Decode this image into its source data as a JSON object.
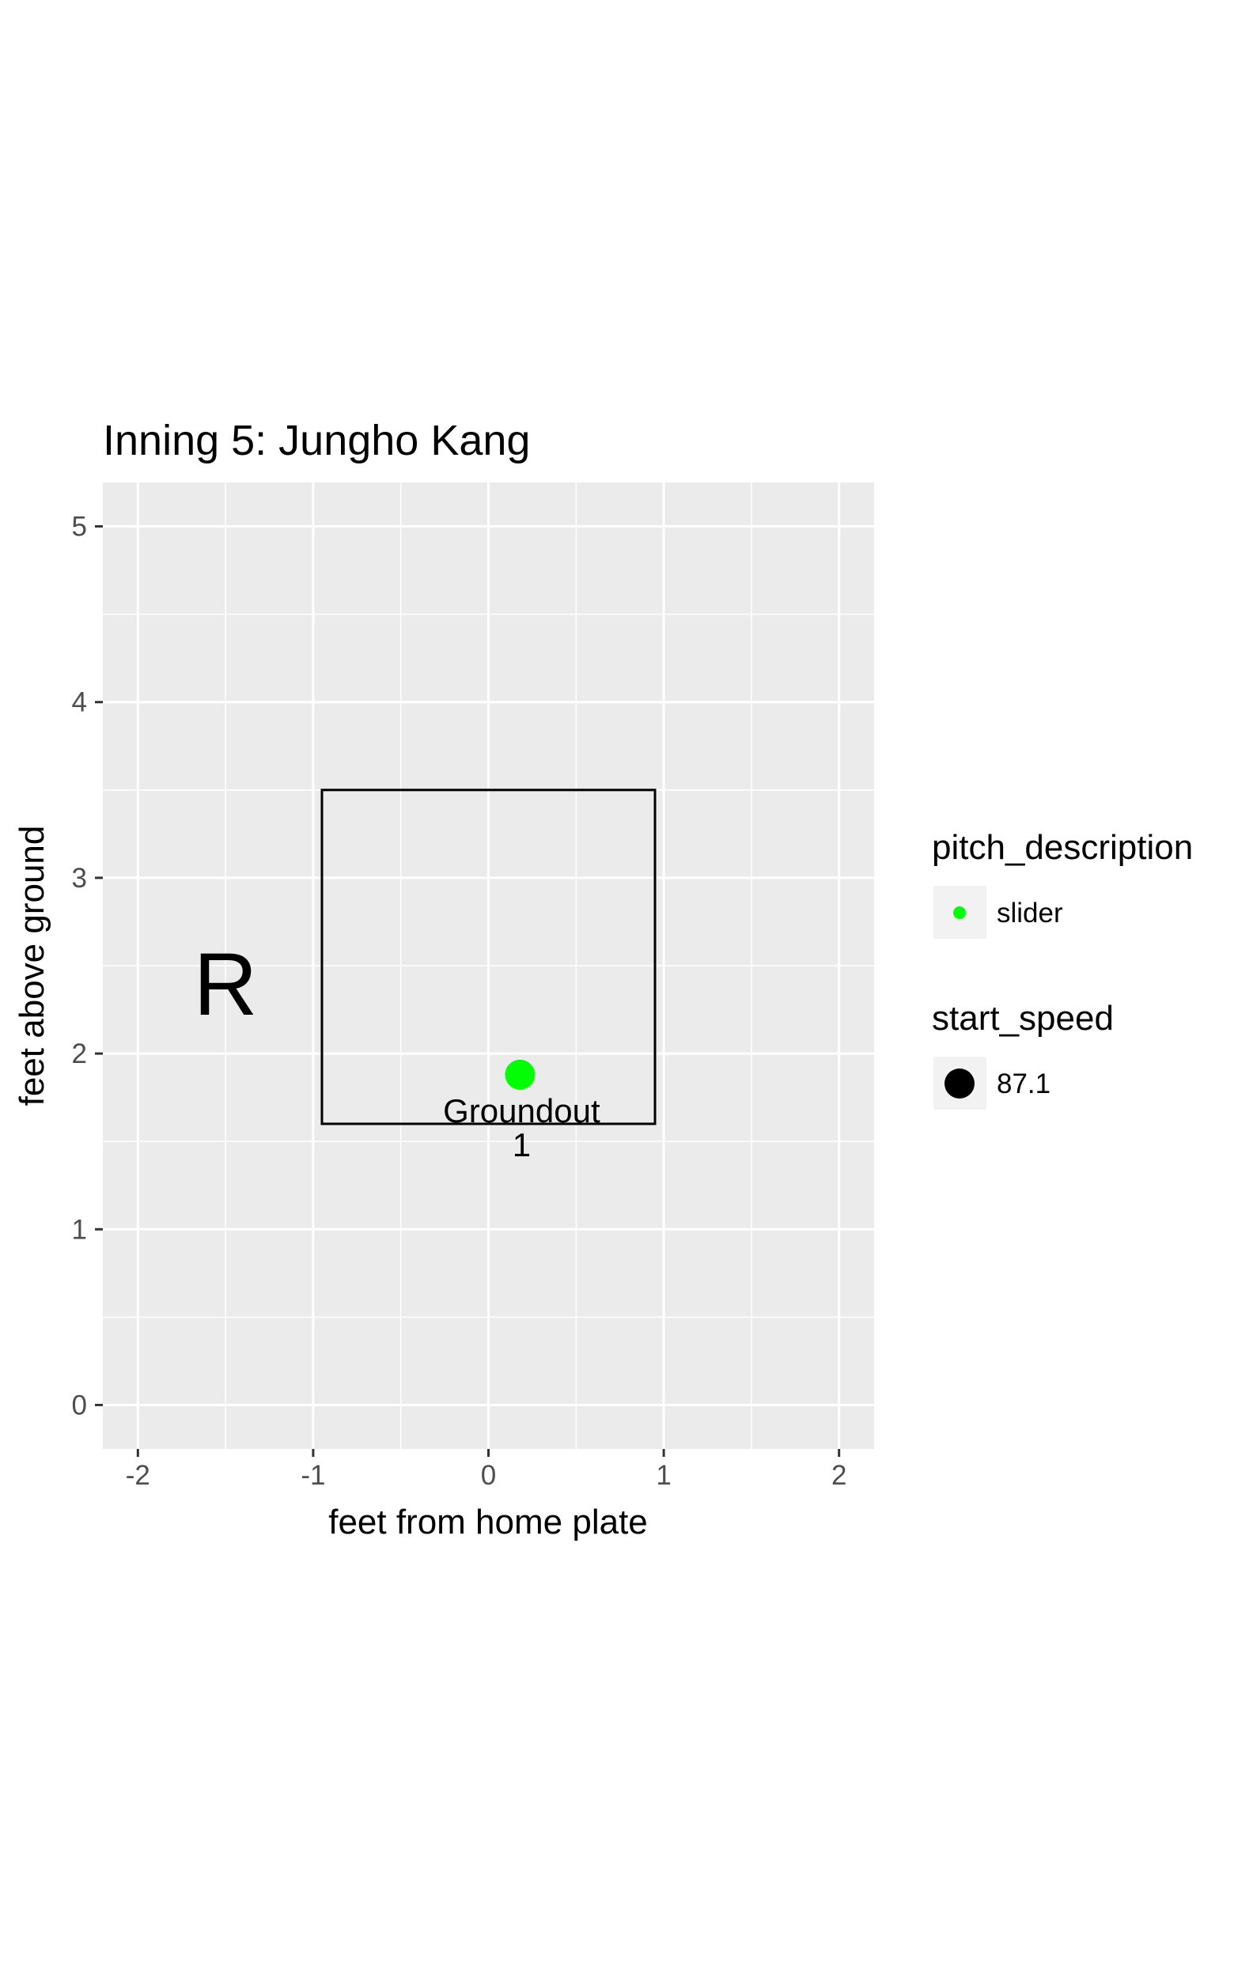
{
  "chart_data": {
    "type": "scatter",
    "title": "Inning 5: Jungho Kang",
    "xlabel": "feet from home plate",
    "ylabel": "feet above ground",
    "xlim": [
      -2.2,
      2.2
    ],
    "ylim": [
      -0.25,
      5.25
    ],
    "x_ticks": [
      -2,
      -1,
      0,
      1,
      2
    ],
    "y_ticks": [
      0,
      1,
      2,
      3,
      4,
      5
    ],
    "grid": true,
    "strike_zone": {
      "x_min": -0.95,
      "x_max": 0.95,
      "y_min": 1.6,
      "y_max": 3.5
    },
    "batter_side_label": {
      "text": "R",
      "x": -1.5,
      "y": 2.4
    },
    "points": [
      {
        "x": 0.18,
        "y": 1.88,
        "pitch_description": "slider",
        "start_speed": 87.1,
        "color": "#00ff00",
        "result": "Groundout",
        "count": "1"
      }
    ],
    "legends": [
      {
        "title": "pitch_description",
        "entries": [
          {
            "label": "slider",
            "color": "#00ff00",
            "glyph": "small-dot"
          }
        ]
      },
      {
        "title": "start_speed",
        "entries": [
          {
            "label": "87.1",
            "color": "#000000",
            "glyph": "large-dot"
          }
        ]
      }
    ],
    "legend_position": "right",
    "colors": {
      "panel_bg": "#ebebeb",
      "grid": "#ffffff",
      "page_bg": "#ffffff"
    }
  }
}
